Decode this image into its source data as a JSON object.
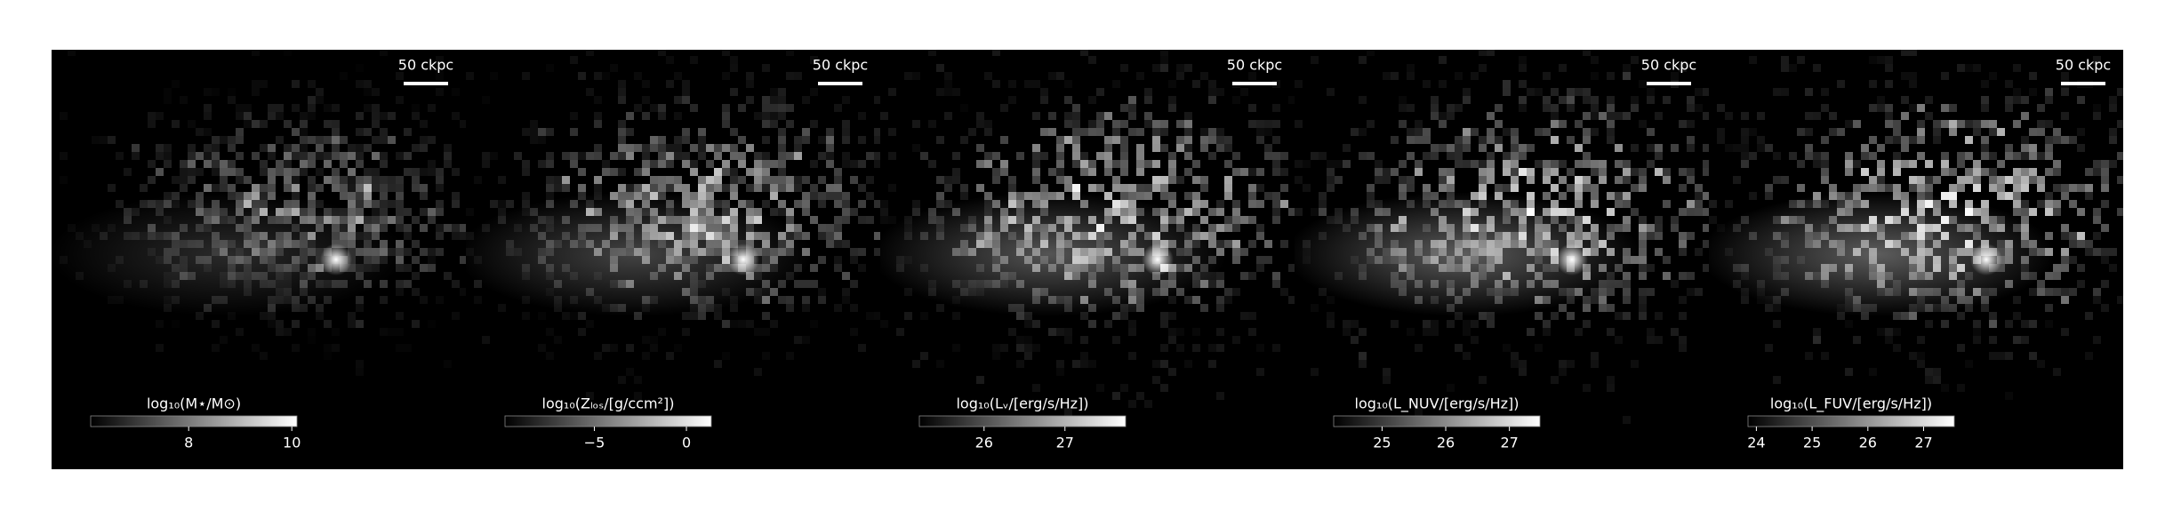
{
  "chart_data": [
    {
      "type": "image",
      "scalebar_label": "50 ckpc",
      "colorbar_label": "log₁₀(M⋆/M⊙)",
      "clim": [
        6.1,
        10.1
      ],
      "cticks": [
        8,
        10
      ]
    },
    {
      "type": "image",
      "scalebar_label": "50 ckpc",
      "colorbar_label": "log₁₀(Zₗₒₛ/[g/ccm²])",
      "clim": [
        -9.85,
        1.35
      ],
      "cticks": [
        {
          "value": -5,
          "label": "−5"
        },
        0
      ]
    },
    {
      "type": "image",
      "scalebar_label": "50 ckpc",
      "colorbar_label": "log₁₀(Lᵥ/[erg/s/Hz])",
      "clim": [
        25.2,
        27.75
      ],
      "cticks": [
        26,
        27
      ]
    },
    {
      "type": "image",
      "scalebar_label": "50 ckpc",
      "colorbar_label": "log₁₀(L_NUV/[erg/s/Hz])",
      "clim": [
        24.24,
        27.48
      ],
      "cticks": [
        25,
        26,
        27
      ]
    },
    {
      "type": "image",
      "scalebar_label": "50 ckpc",
      "colorbar_label": "log₁₀(L_FUV/[erg/s/Hz])",
      "clim": [
        23.85,
        27.55
      ],
      "cticks": [
        24,
        25,
        26,
        27
      ]
    }
  ]
}
